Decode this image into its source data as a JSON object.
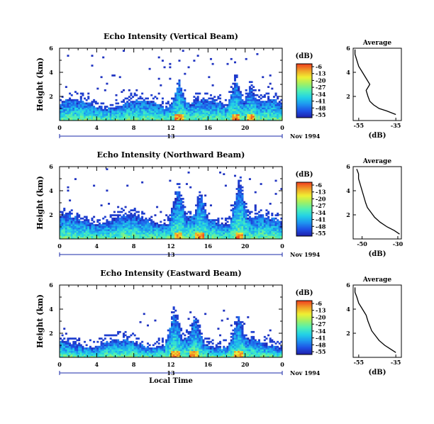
{
  "chart_data": [
    {
      "type": "heatmap",
      "title": "Echo Intensity (Vertical Beam)",
      "ylabel": "Height (km)",
      "yticks": [
        "2",
        "4",
        "6"
      ],
      "ylim": [
        0,
        6
      ],
      "xticks": [
        "0",
        "4",
        "8",
        "12",
        "16",
        "20",
        "0"
      ],
      "xlim": [
        0,
        24
      ],
      "date_marker": "13",
      "date_label": "Nov 1994",
      "colorbar": {
        "unit": "(dB)",
        "ticks": [
          "-6",
          "-13",
          "-20",
          "-27",
          "-34",
          "-41",
          "-48",
          "-55"
        ]
      },
      "features": {
        "base_top_km": 1.4,
        "plumes": [
          [
            12.9,
            2.8
          ],
          [
            19.0,
            3.0
          ],
          [
            20.6,
            2.5
          ]
        ],
        "speckle_max_km": 5.8
      },
      "profile": {
        "title": "Average",
        "xlabel": "(dB)",
        "xticks": [
          "-55",
          "-35"
        ],
        "xlim": [
          -58,
          -32
        ],
        "heights": [
          0.5,
          0.8,
          1.0,
          1.3,
          1.6,
          2.0,
          2.5,
          3.0,
          3.5,
          4.0,
          4.5,
          5.0,
          5.5,
          5.9
        ],
        "values": [
          -35,
          -40,
          -44,
          -47,
          -49,
          -50,
          -51,
          -49,
          -51,
          -53,
          -55,
          -56,
          -57,
          -57
        ]
      }
    },
    {
      "type": "heatmap",
      "title": "Echo Intensity (Northward Beam)",
      "ylabel": "Height (km)",
      "yticks": [
        "2",
        "4",
        "6"
      ],
      "ylim": [
        0,
        6
      ],
      "xticks": [
        "0",
        "4",
        "8",
        "12",
        "16",
        "20",
        "0"
      ],
      "xlim": [
        0,
        24
      ],
      "date_marker": "13",
      "date_label": "Nov 1994",
      "colorbar": {
        "unit": "(dB)",
        "ticks": [
          "-6",
          "-13",
          "-20",
          "-27",
          "-34",
          "-41",
          "-48",
          "-55"
        ]
      },
      "features": {
        "base_top_km": 1.6,
        "plumes": [
          [
            12.8,
            3.8
          ],
          [
            15.2,
            3.3
          ],
          [
            19.4,
            4.4
          ]
        ],
        "speckle_max_km": 5.8
      },
      "profile": {
        "title": "Average",
        "xlabel": "(dB)",
        "xticks": [
          "-50",
          "-30"
        ],
        "xlim": [
          -55,
          -28
        ],
        "heights": [
          0.4,
          0.7,
          1.0,
          1.4,
          1.8,
          2.2,
          2.6,
          3.0,
          3.5,
          4.0,
          4.5,
          5.0,
          5.4,
          5.8
        ],
        "values": [
          -29,
          -32,
          -36,
          -40,
          -43,
          -45,
          -47,
          -48,
          -49,
          -50,
          -51,
          -52,
          -52,
          -53
        ]
      }
    },
    {
      "type": "heatmap",
      "title": "Echo Intensity (Eastward Beam)",
      "ylabel": "Height (km)",
      "yticks": [
        "2",
        "4",
        "6"
      ],
      "ylim": [
        0,
        6
      ],
      "xticks": [
        "0",
        "4",
        "8",
        "12",
        "16",
        "20",
        "0"
      ],
      "xlim": [
        0,
        24
      ],
      "xlabel": "Local Time",
      "date_marker": "13",
      "date_label": "Nov 1994",
      "colorbar": {
        "unit": "(dB)",
        "ticks": [
          "-6",
          "-13",
          "-20",
          "-27",
          "-34",
          "-41",
          "-48",
          "-55"
        ]
      },
      "features": {
        "base_top_km": 1.2,
        "plumes": [
          [
            12.4,
            3.5
          ],
          [
            14.6,
            3.0
          ],
          [
            19.3,
            3.0
          ]
        ],
        "speckle_max_km": 4.0
      },
      "profile": {
        "title": "Average",
        "xlabel": "(dB)",
        "xticks": [
          "-55",
          "-35"
        ],
        "xlim": [
          -58,
          -32
        ],
        "heights": [
          0.4,
          0.7,
          1.0,
          1.4,
          1.8,
          2.2,
          2.6,
          3.0,
          3.5,
          4.0,
          4.5,
          5.0,
          5.4,
          5.8
        ],
        "values": [
          -35,
          -38,
          -41,
          -44,
          -46,
          -48,
          -49,
          -50,
          -51,
          -53,
          -55,
          -56,
          -57,
          -57
        ]
      }
    }
  ],
  "colors": {
    "colormap": [
      "#2020a8",
      "#1e50e6",
      "#1e96f0",
      "#22d2e6",
      "#50f0b4",
      "#a0f064",
      "#f0f032",
      "#f0a028",
      "#f03c1e"
    ],
    "date_line": "#1a2aa8"
  }
}
